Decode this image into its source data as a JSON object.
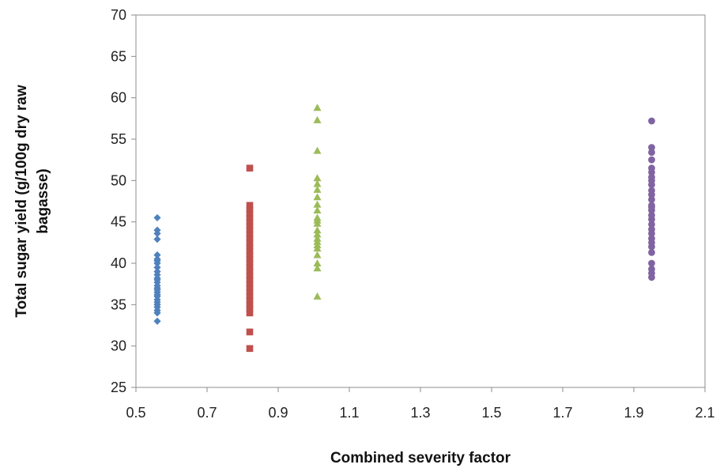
{
  "chart_data": {
    "type": "scatter",
    "title": "",
    "xlabel": "Combined severity factor",
    "ylabel": "Total sugar yield (g/100g dry raw bagasse)",
    "ylabel_lines": [
      "Total sugar yield (g/100g dry raw",
      "bagasse)"
    ],
    "xlim": [
      0.5,
      2.1
    ],
    "ylim": [
      25,
      70
    ],
    "x_ticks": [
      0.5,
      0.7,
      0.9,
      1.1,
      1.3,
      1.5,
      1.7,
      1.9,
      2.1
    ],
    "x_tick_labels": [
      "0.5",
      "0.7",
      "0.9",
      "1.1",
      "1.3",
      "1.5",
      "1.7",
      "1.9",
      "2.1"
    ],
    "y_ticks": [
      25,
      30,
      35,
      40,
      45,
      50,
      55,
      60,
      65,
      70
    ],
    "y_tick_labels": [
      "25",
      "30",
      "35",
      "40",
      "45",
      "50",
      "55",
      "60",
      "65",
      "70"
    ],
    "grid": false,
    "legend": "none",
    "series": [
      {
        "marker": "diamond",
        "color": "#4f81bd",
        "x": [
          0.56,
          0.56,
          0.56,
          0.56,
          0.56,
          0.56,
          0.56,
          0.56,
          0.56,
          0.56,
          0.56,
          0.56,
          0.56,
          0.56,
          0.56,
          0.56,
          0.56,
          0.56,
          0.56,
          0.56,
          0.56,
          0.56,
          0.56,
          0.56,
          0.56,
          0.56,
          0.56
        ],
        "y": [
          45.5,
          44.0,
          43.6,
          42.9,
          41.0,
          40.5,
          40.0,
          39.5,
          39.0,
          38.2,
          38.0,
          37.7,
          37.3,
          37.0,
          36.8,
          36.5,
          36.2,
          36.0,
          35.6,
          35.3,
          35.0,
          34.7,
          34.3,
          34.0,
          33.0,
          40.3,
          38.6
        ]
      },
      {
        "marker": "square",
        "color": "#c0504d",
        "x": [
          0.82,
          0.82,
          0.82,
          0.82,
          0.82,
          0.82,
          0.82,
          0.82,
          0.82,
          0.82,
          0.82,
          0.82,
          0.82,
          0.82,
          0.82,
          0.82,
          0.82,
          0.82,
          0.82,
          0.82,
          0.82,
          0.82,
          0.82,
          0.82,
          0.82
        ],
        "y": [
          51.5,
          47.0,
          46.5,
          46.0,
          45.5,
          45.0,
          44.5,
          44.0,
          43.5,
          43.0,
          42.5,
          42.0,
          41.5,
          41.0,
          40.5,
          40.0,
          39.5,
          39.0,
          38.5,
          38.0,
          37.5,
          37.0,
          36.5,
          36.0,
          35.5
        ]
      },
      {
        "marker": "square",
        "color": "#c0504d",
        "x": [
          0.82,
          0.82,
          0.82,
          0.82,
          0.82
        ],
        "y": [
          35.0,
          34.5,
          34.0,
          31.7,
          29.7
        ]
      },
      {
        "marker": "triangle",
        "color": "#9bbb59",
        "x": [
          1.01,
          1.01,
          1.01,
          1.01,
          1.01,
          1.01,
          1.01,
          1.01,
          1.01,
          1.01,
          1.01,
          1.01,
          1.01,
          1.01,
          1.01,
          1.01,
          1.01,
          1.01,
          1.01,
          1.01,
          1.01,
          1.01
        ],
        "y": [
          58.8,
          57.3,
          53.6,
          50.3,
          49.6,
          48.9,
          48.0,
          47.1,
          46.4,
          45.5,
          44.8,
          44.0,
          43.5,
          43.0,
          42.6,
          42.2,
          41.8,
          41.0,
          40.0,
          39.4,
          36.0,
          45.2
        ]
      },
      {
        "marker": "circle",
        "color": "#8064a2",
        "x": [
          1.95,
          1.95,
          1.95,
          1.95,
          1.95,
          1.95,
          1.95,
          1.95,
          1.95,
          1.95,
          1.95,
          1.95,
          1.95,
          1.95,
          1.95,
          1.95,
          1.95,
          1.95,
          1.95,
          1.95,
          1.95,
          1.95,
          1.95,
          1.95,
          1.95,
          1.95,
          1.95,
          1.95
        ],
        "y": [
          57.2,
          54.0,
          53.4,
          52.5,
          51.5,
          51.0,
          50.4,
          49.5,
          48.8,
          48.3,
          47.7,
          47.0,
          46.4,
          45.8,
          45.3,
          44.7,
          44.1,
          43.6,
          43.0,
          42.5,
          42.0,
          41.3,
          40.0,
          39.3,
          38.8,
          38.3,
          50.0,
          46.8
        ]
      }
    ]
  }
}
